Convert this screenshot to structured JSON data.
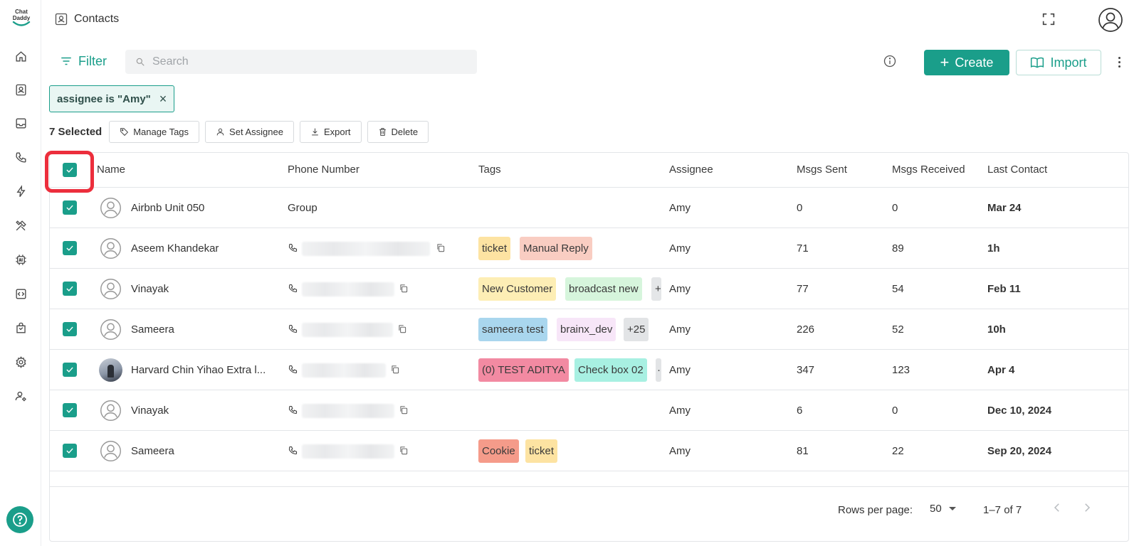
{
  "app": {
    "logo_text_top": "Chat",
    "logo_text_bottom": "Daddy"
  },
  "header": {
    "title": "Contacts"
  },
  "toolbar": {
    "filter_label": "Filter",
    "search_placeholder": "Search",
    "create_label": "Create",
    "import_label": "Import"
  },
  "filter_chip": {
    "label": "assignee is \"Amy\""
  },
  "bulk_actions": {
    "selected_label": "7 Selected",
    "manage_tags": "Manage Tags",
    "set_assignee": "Set Assignee",
    "export": "Export",
    "delete": "Delete"
  },
  "table": {
    "columns": [
      "Name",
      "Phone Number",
      "Tags",
      "Assignee",
      "Msgs Sent",
      "Msgs Received",
      "Last Contact"
    ],
    "rows": [
      {
        "name": "Airbnb Unit 050",
        "phone": "Group",
        "tags": [],
        "assignee": "Amy",
        "sent": "0",
        "received": "0",
        "last": "Mar 24"
      },
      {
        "name": "Aseem Khandekar",
        "phone": "",
        "tags": [
          {
            "label": "ticket",
            "color": "#fde3a2"
          },
          {
            "label": "Manual Reply",
            "color": "#f9cdc2"
          }
        ],
        "assignee": "Amy",
        "sent": "71",
        "received": "89",
        "last": "1h"
      },
      {
        "name": "Vinayak",
        "phone": "",
        "tags": [
          {
            "label": "New Customer",
            "color": "#fdeeb5"
          },
          {
            "label": "broadcast new",
            "color": "#d6f5dc"
          },
          {
            "label": "+",
            "color": "#e4e6e8"
          }
        ],
        "assignee": "Amy",
        "sent": "77",
        "received": "54",
        "last": "Feb 11"
      },
      {
        "name": "Sameera",
        "phone": "",
        "tags": [
          {
            "label": "sameera test",
            "color": "#a9d6ee"
          },
          {
            "label": "brainx_dev",
            "color": "#f7e6f8"
          },
          {
            "label": "+25",
            "color": "#e2e4e6"
          }
        ],
        "assignee": "Amy",
        "sent": "226",
        "received": "52",
        "last": "10h"
      },
      {
        "name": "Harvard Chin Yihao Extra l...",
        "phone": "",
        "tags": [
          {
            "label": "(0) TEST ADITYA",
            "color": "#f28aa2"
          },
          {
            "label": "Check box 02",
            "color": "#a8f0e2"
          },
          {
            "label": "·",
            "color": "#e2e4e6"
          }
        ],
        "assignee": "Amy",
        "sent": "347",
        "received": "123",
        "last": "Apr 4"
      },
      {
        "name": "Vinayak",
        "phone": "",
        "tags": [],
        "assignee": "Amy",
        "sent": "6",
        "received": "0",
        "last": "Dec 10, 2024"
      },
      {
        "name": "Sameera",
        "phone": "",
        "tags": [
          {
            "label": "Cookie",
            "color": "#f59b8a"
          },
          {
            "label": "ticket",
            "color": "#fde3a2"
          }
        ],
        "assignee": "Amy",
        "sent": "81",
        "received": "22",
        "last": "Sep 20, 2024"
      }
    ]
  },
  "pagination": {
    "rows_per_page_label": "Rows per page:",
    "rows_per_page_value": "50",
    "range": "1–7 of 7"
  },
  "colors": {
    "accent": "#1a9e8a",
    "highlight": "#ec2e3c"
  }
}
